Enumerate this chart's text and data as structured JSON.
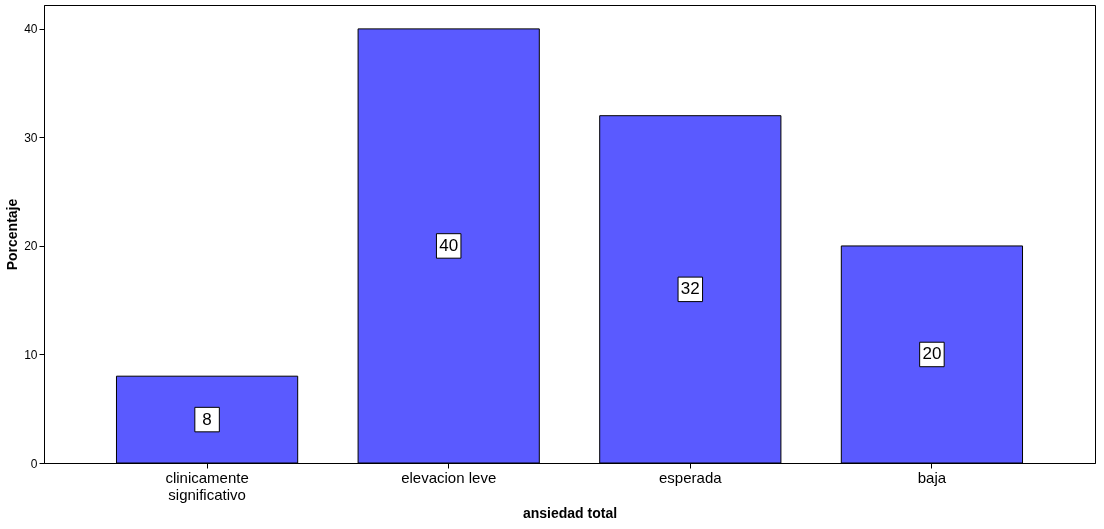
{
  "chart_data": {
    "type": "bar",
    "xlabel": "ansiedad total",
    "ylabel": "Porcentaje",
    "categories": [
      "clinicamente significativo",
      "elevacion leve",
      "esperada",
      "baja"
    ],
    "values": [
      8,
      40,
      32,
      20
    ],
    "color": "#5a5aff",
    "ylim": [
      0,
      42.2
    ],
    "yticks": [
      0,
      10,
      20,
      30,
      40
    ],
    "grid": false,
    "data_labels": true
  }
}
